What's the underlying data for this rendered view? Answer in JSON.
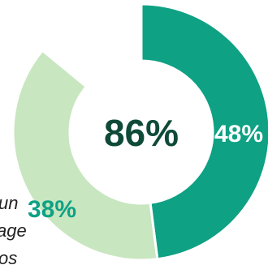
{
  "chart_data": {
    "type": "pie",
    "variant": "donut",
    "center_label": "86%",
    "slices": [
      {
        "label": "48%",
        "value": 48,
        "color": "#0ea184"
      },
      {
        "label": "38%",
        "value": 38,
        "color": "#c8e6c0"
      }
    ],
    "gap_value": 14,
    "start_angle_deg": 0,
    "colors": {
      "center_text": "#0f4a38",
      "slice_label_on_dark": "#ffffff",
      "slice_label_on_light": "#0ea184",
      "side_text": "#222222"
    },
    "side_text_fragments": [
      "un",
      "age",
      "os"
    ]
  }
}
